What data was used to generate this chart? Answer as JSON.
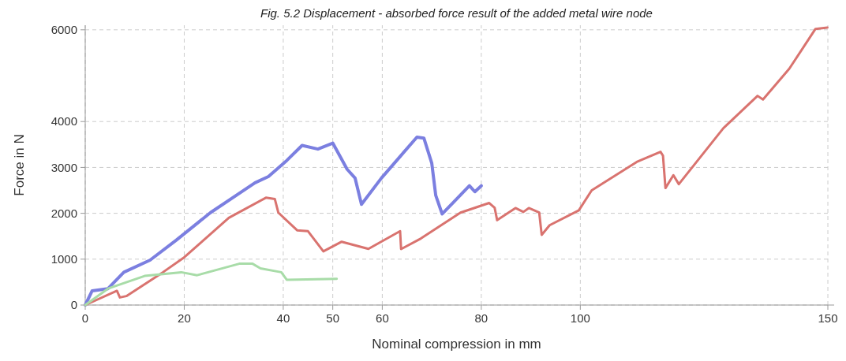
{
  "chart_data": {
    "type": "line",
    "title": "Fig. 5.2 Displacement - absorbed force result of the added metal wire node",
    "xlabel": "Nominal compression in mm",
    "ylabel": "Force in N",
    "xlim": [
      0,
      150
    ],
    "xticks": [
      0,
      20,
      40,
      50,
      60,
      80,
      100,
      150
    ],
    "ylim": [
      0,
      6100
    ],
    "yticks": [
      0,
      1000,
      2000,
      3000,
      4000,
      6000
    ],
    "grid": true,
    "series": [
      {
        "color": "#7b7fe0",
        "x": [
          0,
          1.4,
          4.6,
          7.8,
          13.1,
          18.4,
          25.3,
          34.3,
          37,
          40.7,
          43.8,
          47,
          50,
          52.9,
          54.5,
          55.8,
          59.8,
          67,
          68.4,
          70,
          70.8,
          72.1,
          77.6,
          78.7,
          80
        ],
        "values": [
          0,
          310,
          358,
          715,
          980,
          1415,
          2015,
          2665,
          2800,
          3150,
          3480,
          3400,
          3530,
          2960,
          2770,
          2195,
          2765,
          3660,
          3640,
          3090,
          2390,
          1985,
          2600,
          2470,
          2600
        ]
      },
      {
        "color": "#d9736f",
        "x": [
          0,
          6.4,
          7,
          8.3,
          15.7,
          20,
          29,
          36.5,
          38.3,
          39,
          42.8,
          45,
          48.1,
          51.8,
          57.2,
          63.6,
          63.8,
          67.8,
          75.8,
          81.6,
          82.7,
          83.2,
          86.9,
          88.5,
          89.6,
          91.7,
          92.2,
          93.8,
          99.7,
          102.3,
          111.4,
          116.2,
          116.7,
          117.2,
          118.8,
          119.9,
          128.9,
          135.8,
          136.9,
          142.2,
          147.5,
          149.9
        ],
        "values": [
          0,
          310,
          165,
          195,
          715,
          1040,
          1900,
          2340,
          2310,
          2015,
          1630,
          1610,
          1170,
          1380,
          1225,
          1610,
          1220,
          1450,
          2015,
          2225,
          2120,
          1850,
          2115,
          2030,
          2115,
          2015,
          1530,
          1740,
          2065,
          2500,
          3120,
          3340,
          3255,
          2550,
          2830,
          2635,
          3855,
          4560,
          4480,
          5150,
          6020,
          6050
        ]
      },
      {
        "color": "#a8dca8",
        "x": [
          0,
          4.6,
          12,
          19.4,
          22.6,
          31.1,
          33.8,
          35.4,
          39.6,
          40.7,
          50.8
        ],
        "values": [
          0,
          358,
          635,
          715,
          650,
          900,
          900,
          800,
          715,
          550,
          570
        ]
      }
    ]
  }
}
